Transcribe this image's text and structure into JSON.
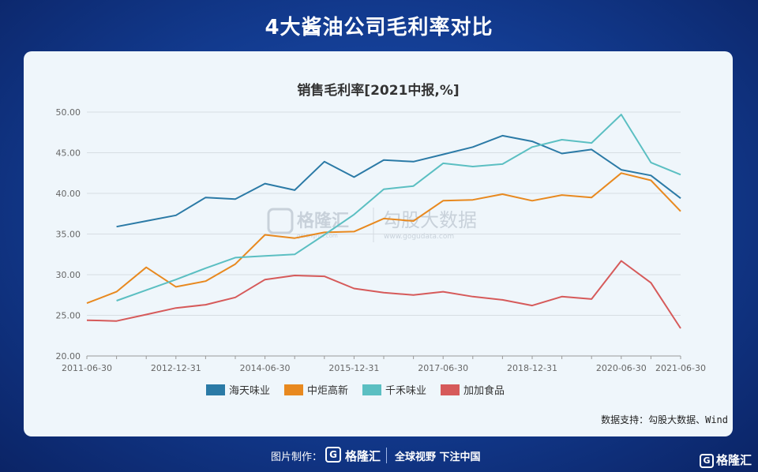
{
  "page_title": "4大酱油公司毛利率对比",
  "watermark": {
    "brand": "格隆汇",
    "site1": "gelonghui.com",
    "name": "勾股大数据",
    "site2": "www.gogudata.com"
  },
  "source": "数据支持：勾股大数据、Wind",
  "footer": {
    "credit": "图片制作：",
    "logo_letter": "G",
    "brand": "格隆汇",
    "slogan": "全球视野 下注中国"
  },
  "corner_brand": "格隆汇",
  "colors": {
    "haitian": "#2b7aa6",
    "zhongju": "#e8891f",
    "qianhe": "#5bbfc2",
    "jiajia": "#d65a5a",
    "grid": "#d7dde3",
    "axis": "#666666"
  },
  "chart_data": {
    "type": "line",
    "title": "销售毛利率[2021中报,%]",
    "xlabel": "",
    "ylabel": "",
    "ylim": [
      20,
      50
    ],
    "yticks": [
      "20.00",
      "25.00",
      "30.00",
      "35.00",
      "40.00",
      "45.00",
      "50.00"
    ],
    "grid": true,
    "legend_position": "bottom",
    "x": [
      "2011-06-30",
      "2011-12-31",
      "2012-06-30",
      "2012-12-31",
      "2013-06-30",
      "2013-12-31",
      "2014-06-30",
      "2014-12-31",
      "2015-06-30",
      "2015-12-31",
      "2016-06-30",
      "2016-12-31",
      "2017-06-30",
      "2017-12-31",
      "2018-06-30",
      "2018-12-31",
      "2019-06-30",
      "2019-12-31",
      "2020-06-30",
      "2020-12-31",
      "2021-06-30"
    ],
    "xtick_labels": [
      "2011-06-30",
      "2012-12-31",
      "2014-06-30",
      "2015-12-31",
      "2017-06-30",
      "2018-12-31",
      "2020-06-30",
      "2021-06-30"
    ],
    "series": [
      {
        "name": "海天味业",
        "color_key": "haitian",
        "values": [
          null,
          35.9,
          36.6,
          37.3,
          39.5,
          39.3,
          41.2,
          40.4,
          43.9,
          42.0,
          44.1,
          43.9,
          44.8,
          45.7,
          47.1,
          46.4,
          44.9,
          45.4,
          42.9,
          42.2,
          39.4
        ]
      },
      {
        "name": "中炬高新",
        "color_key": "zhongju",
        "values": [
          26.5,
          27.9,
          30.9,
          28.5,
          29.2,
          31.3,
          34.9,
          34.5,
          35.2,
          35.3,
          36.9,
          36.6,
          39.1,
          39.2,
          39.9,
          39.1,
          39.8,
          39.5,
          42.5,
          41.6,
          37.8
        ]
      },
      {
        "name": "千禾味业",
        "color_key": "qianhe",
        "values": [
          null,
          26.8,
          28.1,
          29.4,
          30.8,
          32.1,
          32.3,
          32.5,
          34.9,
          37.4,
          40.5,
          40.9,
          43.7,
          43.3,
          43.6,
          45.7,
          46.6,
          46.2,
          49.7,
          43.8,
          42.3
        ]
      },
      {
        "name": "加加食品",
        "color_key": "jiajia",
        "values": [
          24.4,
          24.3,
          25.1,
          25.9,
          26.3,
          27.2,
          29.4,
          29.9,
          29.8,
          28.3,
          27.8,
          27.5,
          27.9,
          27.3,
          26.9,
          26.2,
          27.3,
          27.0,
          31.7,
          29.0,
          23.4
        ]
      }
    ]
  }
}
